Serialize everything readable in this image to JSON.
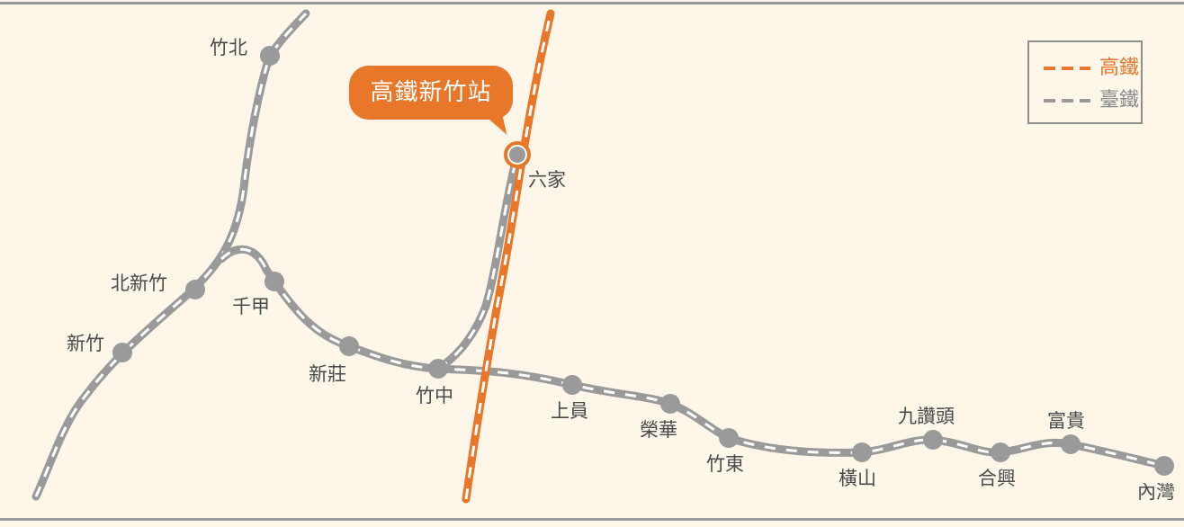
{
  "callout": {
    "label": "高鐵新竹站"
  },
  "legend": [
    {
      "label": "高鐵",
      "color": "#e8772a"
    },
    {
      "label": "臺鐵",
      "color": "#9a9a9a"
    }
  ],
  "stations": [
    {
      "id": "zhubei",
      "name": "竹北"
    },
    {
      "id": "liujia",
      "name": "六家"
    },
    {
      "id": "beixinzhu",
      "name": "北新竹"
    },
    {
      "id": "qianjia",
      "name": "千甲"
    },
    {
      "id": "xinzhu",
      "name": "新竹"
    },
    {
      "id": "xinzhuang",
      "name": "新莊"
    },
    {
      "id": "zhuzhong",
      "name": "竹中"
    },
    {
      "id": "shangyuan",
      "name": "上員"
    },
    {
      "id": "ronghua",
      "name": "榮華"
    },
    {
      "id": "zhudong",
      "name": "竹東"
    },
    {
      "id": "hengshan",
      "name": "橫山"
    },
    {
      "id": "jiuzantou",
      "name": "九讚頭"
    },
    {
      "id": "hexing",
      "name": "合興"
    },
    {
      "id": "fugui",
      "name": "富貴"
    },
    {
      "id": "neiwan",
      "name": "內灣"
    }
  ],
  "colors": {
    "hsr": "#e8772a",
    "tra": "#9a9a9a",
    "background": "#fdf6e9"
  }
}
